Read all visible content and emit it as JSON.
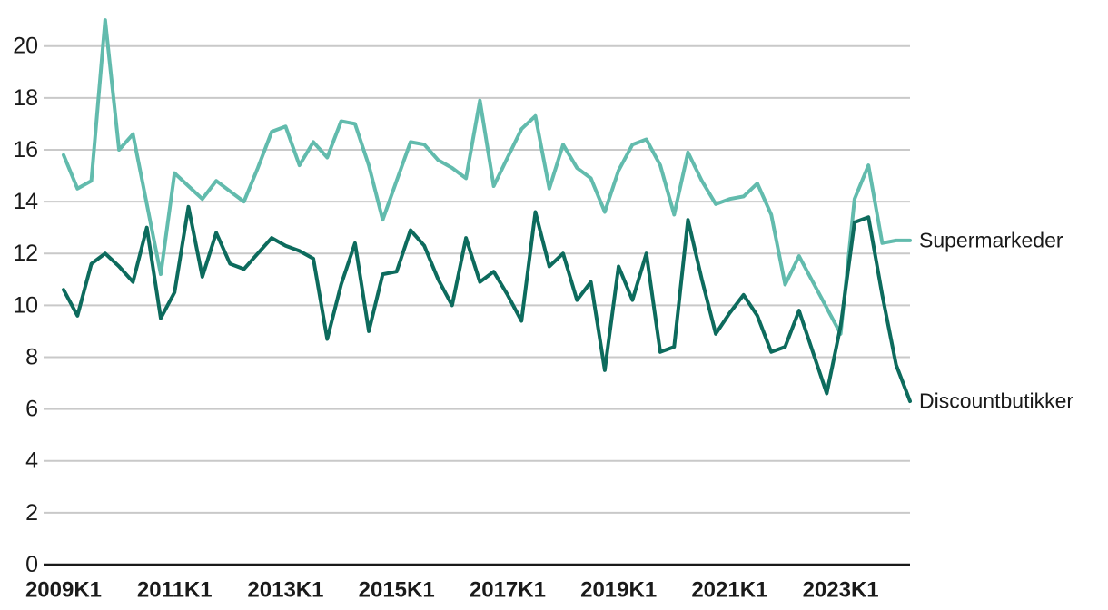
{
  "chart_data": {
    "type": "line",
    "title": "",
    "xlabel": "",
    "ylabel": "",
    "ylim": [
      0,
      21
    ],
    "grid": "horizontal",
    "legend_position": "end-of-line-labels",
    "y_ticks": [
      0,
      2,
      4,
      6,
      8,
      10,
      12,
      14,
      16,
      18,
      20
    ],
    "x_tick_labels": [
      "2009K1",
      "2011K1",
      "2013K1",
      "2015K1",
      "2017K1",
      "2019K1",
      "2021K1",
      "2023K1"
    ],
    "colors": {
      "supermarkeder": "#62bbad",
      "discountbutikker": "#0d6b5d",
      "gridline": "#c9c9c9",
      "axis": "#1a1a1a",
      "text": "#1a1a1a"
    },
    "x": [
      "2009K1",
      "2009K2",
      "2009K3",
      "2009K4",
      "2010K1",
      "2010K2",
      "2010K3",
      "2010K4",
      "2011K1",
      "2011K2",
      "2011K3",
      "2011K4",
      "2012K1",
      "2012K2",
      "2012K3",
      "2012K4",
      "2013K1",
      "2013K2",
      "2013K3",
      "2013K4",
      "2014K1",
      "2014K2",
      "2014K3",
      "2014K4",
      "2015K1",
      "2015K2",
      "2015K3",
      "2015K4",
      "2016K1",
      "2016K2",
      "2016K3",
      "2016K4",
      "2017K1",
      "2017K2",
      "2017K3",
      "2017K4",
      "2018K1",
      "2018K2",
      "2018K3",
      "2018K4",
      "2019K1",
      "2019K2",
      "2019K3",
      "2019K4",
      "2020K1",
      "2020K2",
      "2020K3",
      "2020K4",
      "2021K1",
      "2021K2",
      "2021K3",
      "2021K4",
      "2022K1",
      "2022K2",
      "2022K3",
      "2022K4",
      "2023K1",
      "2023K2",
      "2023K3",
      "2023K4",
      "2024K1",
      "2024K2"
    ],
    "series": [
      {
        "name": "Supermarkeder",
        "color": "#62bbad",
        "values": [
          15.8,
          14.5,
          14.8,
          21.0,
          16.0,
          16.6,
          13.9,
          11.2,
          15.1,
          14.6,
          14.1,
          14.8,
          14.4,
          14.0,
          15.3,
          16.7,
          16.9,
          15.4,
          16.3,
          15.7,
          17.1,
          17.0,
          15.4,
          13.3,
          14.8,
          16.3,
          16.2,
          15.6,
          15.3,
          14.9,
          17.9,
          14.6,
          15.7,
          16.8,
          17.3,
          14.5,
          16.2,
          15.3,
          14.9,
          13.6,
          15.2,
          16.2,
          16.4,
          15.4,
          13.5,
          15.9,
          14.8,
          13.9,
          14.1,
          14.2,
          14.7,
          13.5,
          10.8,
          11.9,
          10.9,
          9.9,
          8.9,
          14.1,
          15.4,
          12.4,
          12.5,
          12.5
        ]
      },
      {
        "name": "Discountbutikker",
        "color": "#0d6b5d",
        "values": [
          10.6,
          9.6,
          11.6,
          12.0,
          11.5,
          10.9,
          13.0,
          9.5,
          10.5,
          13.8,
          11.1,
          12.8,
          11.6,
          11.4,
          12.0,
          12.6,
          12.3,
          12.1,
          11.8,
          8.7,
          10.8,
          12.4,
          9.0,
          11.2,
          11.3,
          12.9,
          12.3,
          11.0,
          10.0,
          12.6,
          10.9,
          11.3,
          10.4,
          9.4,
          13.6,
          11.5,
          12.0,
          10.2,
          10.9,
          7.5,
          11.5,
          10.2,
          12.0,
          8.2,
          8.4,
          13.3,
          11.0,
          8.9,
          9.7,
          10.4,
          9.6,
          8.2,
          8.4,
          9.8,
          8.2,
          6.6,
          9.2,
          13.2,
          13.4,
          10.4,
          7.7,
          6.3
        ]
      }
    ]
  }
}
